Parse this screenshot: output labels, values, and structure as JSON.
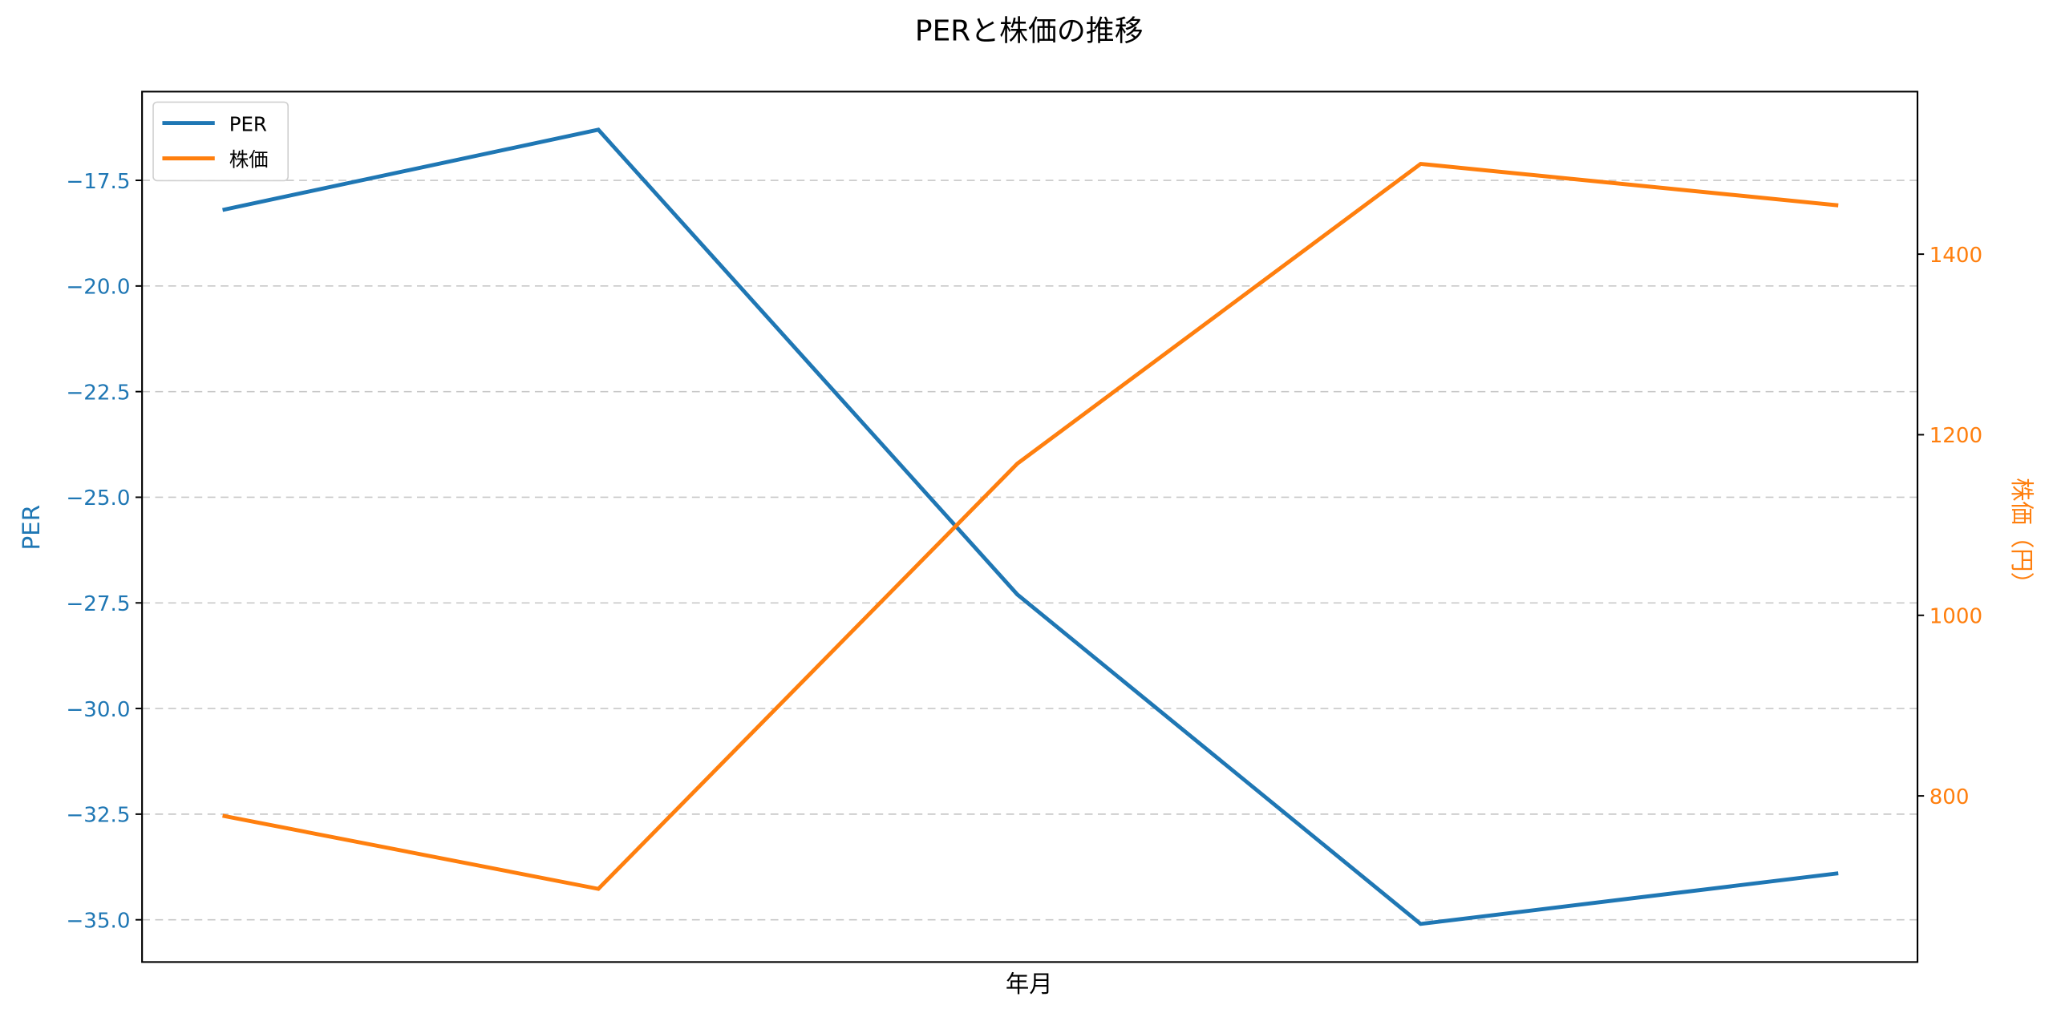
{
  "chart_data": {
    "type": "line",
    "title": "PERと株価の推移",
    "xlabel": "年月",
    "x": [
      1,
      2,
      3,
      4,
      5
    ],
    "x_tick_labels": [],
    "series": [
      {
        "name": "PER",
        "axis": "left",
        "color": "#1f77b4",
        "values": [
          -18.2,
          -16.3,
          -27.3,
          -35.1,
          -33.9
        ]
      },
      {
        "name": "株価",
        "axis": "right",
        "color": "#ff7f0e",
        "values": [
          778,
          697,
          1168,
          1500,
          1454
        ]
      }
    ],
    "y_left": {
      "label": "PER",
      "color": "#1f77b4",
      "ylim": [
        -36.0,
        -15.4
      ],
      "ticks": [
        -17.5,
        -20.0,
        -22.5,
        -25.0,
        -27.5,
        -30.0,
        -32.5,
        -35.0
      ],
      "tick_labels": [
        "−17.5",
        "−20.0",
        "−22.5",
        "−25.0",
        "−27.5",
        "−30.0",
        "−32.5",
        "−35.0"
      ]
    },
    "y_right": {
      "label": "株価（円）",
      "color": "#ff7f0e",
      "ylim": [
        616,
        1580
      ],
      "ticks": [
        800,
        1000,
        1200,
        1400
      ],
      "tick_labels": [
        "800",
        "1000",
        "1200",
        "1400"
      ]
    },
    "grid": {
      "axis": "y-left",
      "style": "dashed",
      "color": "#c8c8c8"
    },
    "legend": {
      "position": "upper left",
      "entries": [
        "PER",
        "株価"
      ]
    }
  }
}
